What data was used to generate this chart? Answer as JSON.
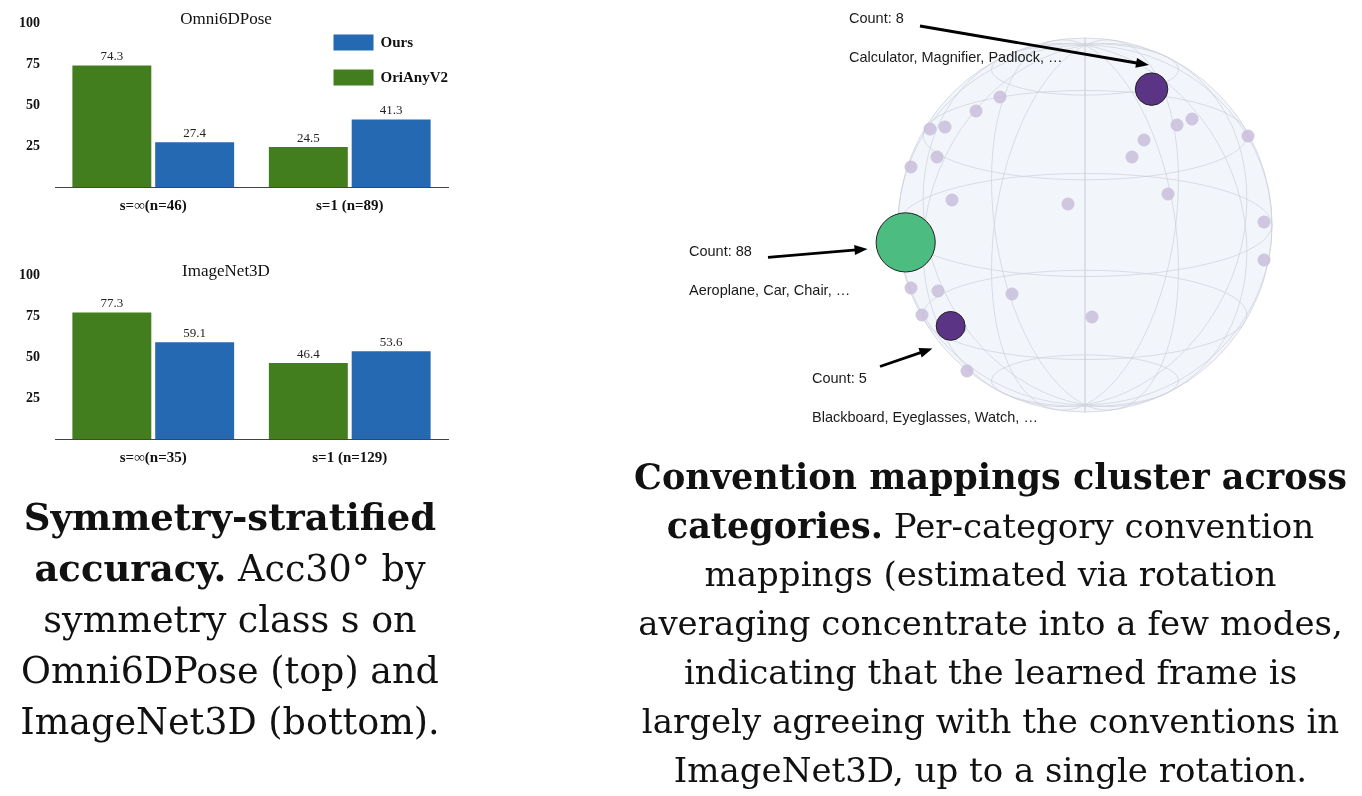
{
  "chart_data": [
    {
      "type": "bar",
      "title": "Omni6DPose",
      "categories": [
        "s=∞(n=46)",
        "s=1 (n=89)"
      ],
      "series": [
        {
          "name": "OriAnyV2",
          "color": "#437e1e",
          "values": [
            74.3,
            24.5
          ]
        },
        {
          "name": "Ours",
          "color": "#2469b2",
          "values": [
            27.4,
            41.3
          ]
        }
      ],
      "ylim": [
        0,
        100
      ],
      "yticks": [
        25,
        50,
        75,
        100
      ],
      "data_labels": true,
      "legend": "top right"
    },
    {
      "type": "bar",
      "title": "ImageNet3D",
      "categories": [
        "s=∞(n=35)",
        "s=1 (n=129)"
      ],
      "series": [
        {
          "color": "#437e1e",
          "values": [
            77.3,
            46.4
          ]
        },
        {
          "color": "#2469b2",
          "values": [
            59.1,
            53.6
          ]
        }
      ],
      "ylim": [
        0,
        100
      ],
      "yticks": [
        25,
        50,
        75,
        100
      ],
      "data_labels": true,
      "annotations": [
        "Symmetry-stratified accuracy. Acc30° by symmetry class s on Omni6DPose (top) and ImageNet3D (bottom)."
      ]
    },
    {
      "type": "other",
      "categories": [
        "Calculator, Magnifier, Padlock, …",
        "Aeroplane, Car, Chair, …",
        "Blackboard, Eyeglasses, Watch, …"
      ],
      "values": [
        8,
        88,
        5
      ],
      "value_labels": [
        "Count: 8",
        "Count: 88",
        "Count: 5"
      ],
      "colors": [
        "#5b3486",
        "#4dbc80",
        "#5b3486"
      ],
      "annotations": [
        "Convention mappings cluster across categories. Per-category convention mappings (estimated via rotation averaging concentrate into a few modes, indicating that the learned frame is largely agreeing with the conventions in ImageNet3D, up to a single rotation."
      ]
    }
  ]
}
